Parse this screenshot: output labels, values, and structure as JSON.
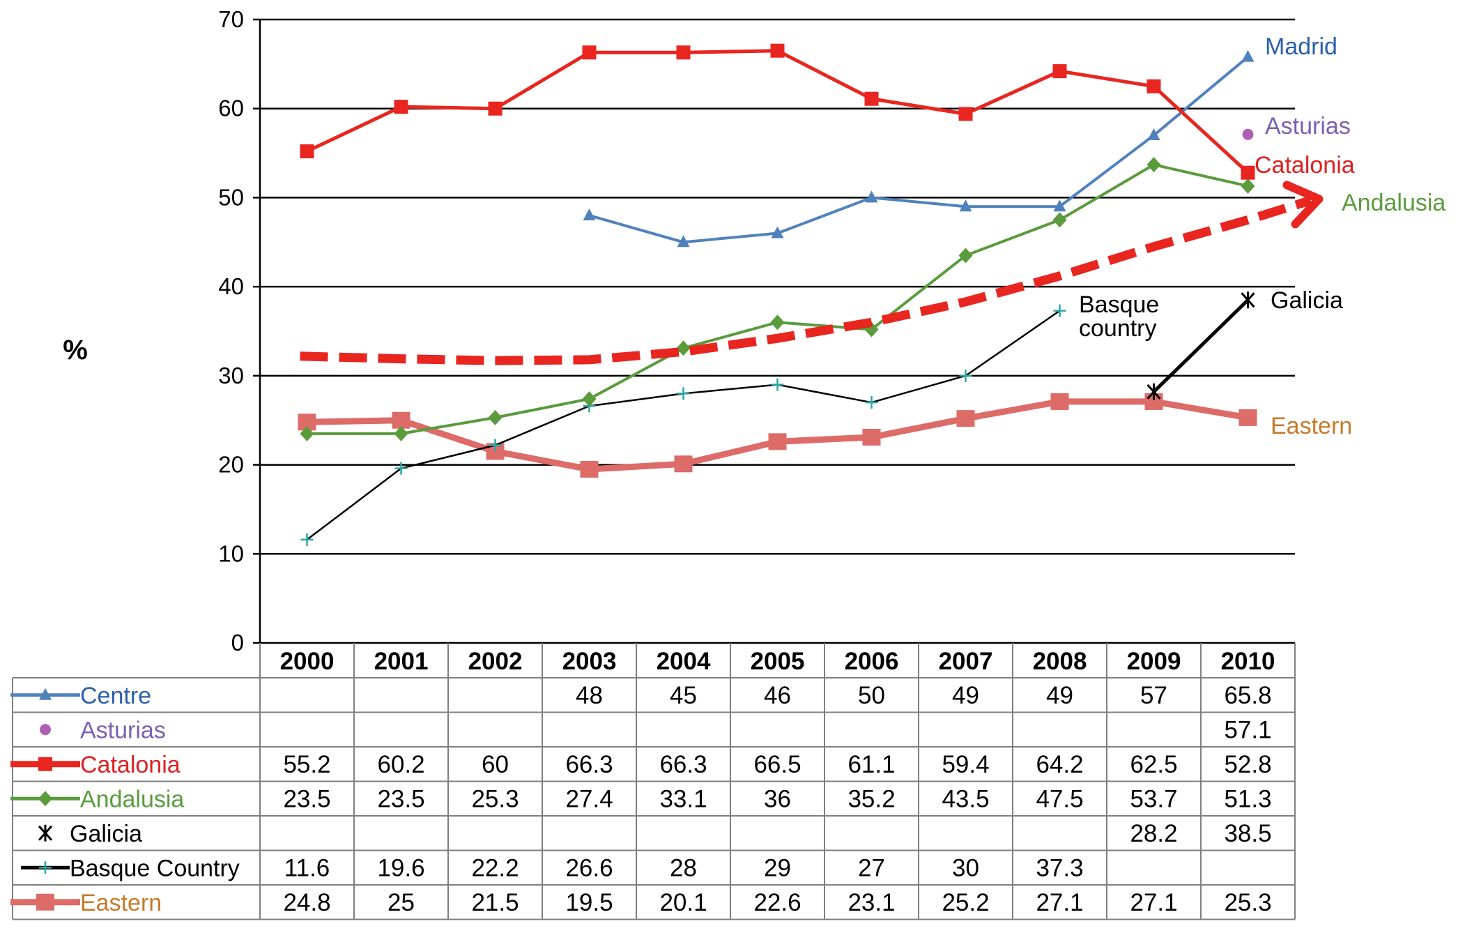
{
  "chart_data": {
    "type": "line",
    "ylabel": "%",
    "ylim": [
      0,
      70
    ],
    "yticks": [
      0,
      10,
      20,
      30,
      40,
      50,
      60,
      70
    ],
    "categories": [
      "2000",
      "2001",
      "2002",
      "2003",
      "2004",
      "2005",
      "2006",
      "2007",
      "2008",
      "2009",
      "2010"
    ],
    "grid": true,
    "series": [
      {
        "name": "Centre",
        "color": "#4f81bd",
        "marker": "triangle",
        "end_label": "Madrid",
        "values": [
          null,
          null,
          null,
          48,
          45,
          46,
          50,
          49,
          49,
          57,
          65.8
        ]
      },
      {
        "name": "Asturias",
        "color": "#b05fb5",
        "marker": "circle",
        "end_label": "Asturias",
        "values": [
          null,
          null,
          null,
          null,
          null,
          null,
          null,
          null,
          null,
          null,
          57.1
        ]
      },
      {
        "name": "Catalonia",
        "color": "#e8251f",
        "marker": "square",
        "end_label": "Catalonia",
        "values": [
          55.2,
          60.2,
          60,
          66.3,
          66.3,
          66.5,
          61.1,
          59.4,
          64.2,
          62.5,
          52.8
        ]
      },
      {
        "name": "Andalusia",
        "color": "#5a9b3c",
        "marker": "diamond",
        "end_label": "Andalusia",
        "values": [
          23.5,
          23.5,
          25.3,
          27.4,
          33.1,
          36,
          35.2,
          43.5,
          47.5,
          53.7,
          51.3
        ]
      },
      {
        "name": "Galicia",
        "color": "#000000",
        "marker": "asterisk",
        "end_label": "Galicia",
        "values": [
          null,
          null,
          null,
          null,
          null,
          null,
          null,
          null,
          null,
          28.2,
          38.5
        ]
      },
      {
        "name": "Basque Country",
        "color": "#000000",
        "marker_color": "#2aa6a6",
        "marker": "plus",
        "end_label": "Basque\ncountry",
        "values": [
          11.6,
          19.6,
          22.2,
          26.6,
          28,
          29,
          27,
          30,
          37.3,
          null,
          null
        ]
      },
      {
        "name": "Eastern",
        "color": "#dd6b67",
        "marker": "square-large",
        "end_label": "Eastern",
        "values": [
          24.8,
          25,
          21.5,
          19.5,
          20.1,
          22.6,
          23.1,
          25.2,
          27.1,
          27.1,
          25.3
        ]
      }
    ],
    "trend": {
      "color": "#e8251f",
      "style": "dashed-arrow",
      "values": [
        32.2,
        31.9,
        31.7,
        31.8,
        32.7,
        34.2,
        36,
        38.3,
        41.2,
        44.5,
        47.5
      ]
    },
    "table": {
      "headers": [
        "2000",
        "2001",
        "2002",
        "2003",
        "2004",
        "2005",
        "2006",
        "2007",
        "2008",
        "2009",
        "2010"
      ],
      "rows": [
        {
          "label": "Centre",
          "label_color": "#2a5fa8",
          "cells": [
            "",
            "",
            "",
            "48",
            "45",
            "46",
            "50",
            "49",
            "49",
            "57",
            "65.8"
          ]
        },
        {
          "label": "Asturias",
          "label_color": "#7b5fb0",
          "cells": [
            "",
            "",
            "",
            "",
            "",
            "",
            "",
            "",
            "",
            "",
            "57.1"
          ]
        },
        {
          "label": "Catalonia",
          "label_color": "#e02020",
          "cells": [
            "55.2",
            "60.2",
            "60",
            "66.3",
            "66.3",
            "66.5",
            "61.1",
            "59.4",
            "64.2",
            "62.5",
            "52.8"
          ]
        },
        {
          "label": "Andalusia",
          "label_color": "#5a9b3c",
          "cells": [
            "23.5",
            "23.5",
            "25.3",
            "27.4",
            "33.1",
            "36",
            "35.2",
            "43.5",
            "47.5",
            "53.7",
            "51.3"
          ]
        },
        {
          "label": "Galicia",
          "label_color": "#000000",
          "cells": [
            "",
            "",
            "",
            "",
            "",
            "",
            "",
            "",
            "",
            "28.2",
            "38.5"
          ]
        },
        {
          "label": "Basque Country",
          "label_color": "#000000",
          "cells": [
            "11.6",
            "19.6",
            "22.2",
            "26.6",
            "28",
            "29",
            "27",
            "30",
            "37.3",
            "",
            ""
          ]
        },
        {
          "label": "Eastern",
          "label_color": "#c77a2a",
          "cells": [
            "24.8",
            "25",
            "21.5",
            "19.5",
            "20.1",
            "22.6",
            "23.1",
            "25.2",
            "27.1",
            "27.1",
            "25.3"
          ]
        }
      ]
    }
  }
}
